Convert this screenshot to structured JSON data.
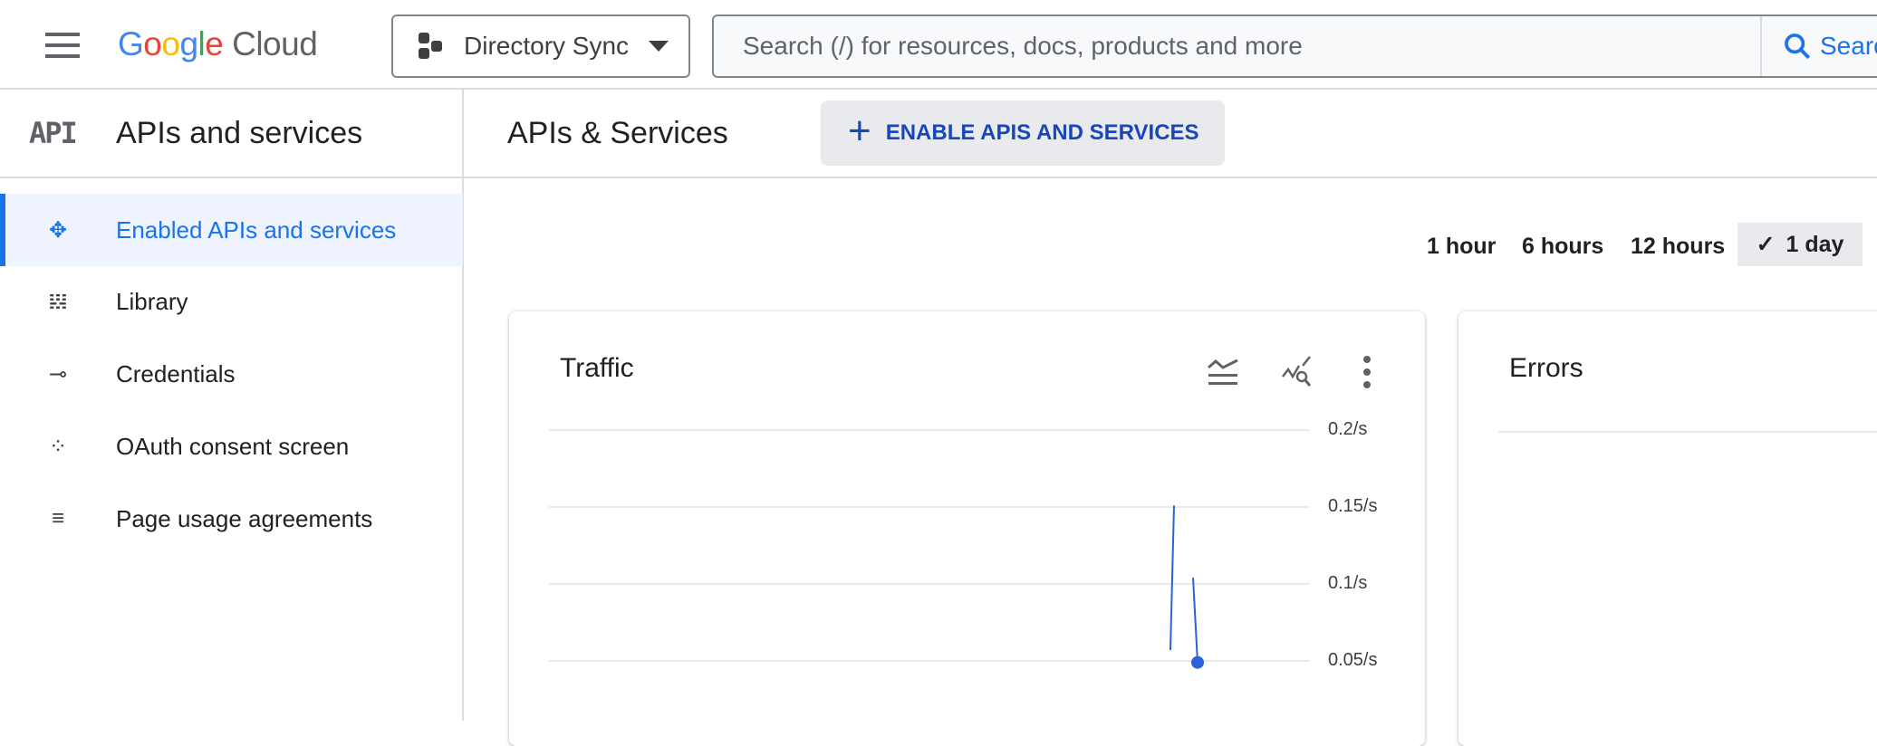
{
  "topbar": {
    "logo_google": "Google",
    "logo_cloud": "Cloud",
    "project": "Directory Sync",
    "search_placeholder": "Search (/) for resources, docs, products and more",
    "search_button": "Search"
  },
  "sidebar": {
    "title": "APIs and services",
    "api_icon_text": "API",
    "items": [
      {
        "label": "Enabled APIs and services",
        "icon": "diamond-nodes-icon",
        "active": true
      },
      {
        "label": "Library",
        "icon": "library-icon"
      },
      {
        "label": "Credentials",
        "icon": "key-icon"
      },
      {
        "label": "OAuth consent screen",
        "icon": "dotted-grid-icon"
      },
      {
        "label": "Page usage agreements",
        "icon": "list-settings-icon"
      }
    ]
  },
  "main": {
    "title": "APIs & Services",
    "enable_button": "ENABLE APIS AND SERVICES",
    "time_ranges": [
      "1 hour",
      "6 hours",
      "12 hours",
      "1 day"
    ],
    "selected_range": "1 day"
  },
  "colors": {
    "accent": "#1a73e8",
    "series": "#2962d9",
    "enable_text": "#1a47b8"
  },
  "cards": {
    "traffic": "Traffic",
    "errors": "Errors"
  },
  "chart_data": {
    "type": "line",
    "title": "Traffic",
    "y_ticks": [
      "0.2/s",
      "0.15/s",
      "0.1/s",
      "0.05/s"
    ],
    "ylim": [
      0.05,
      0.2
    ],
    "grid": true,
    "segments": [
      [
        {
          "y": 0.057
        },
        {
          "y": 0.151
        }
      ],
      [
        {
          "y": 0.104
        },
        {
          "y": 0.049
        }
      ]
    ],
    "marker_last_point": true
  }
}
